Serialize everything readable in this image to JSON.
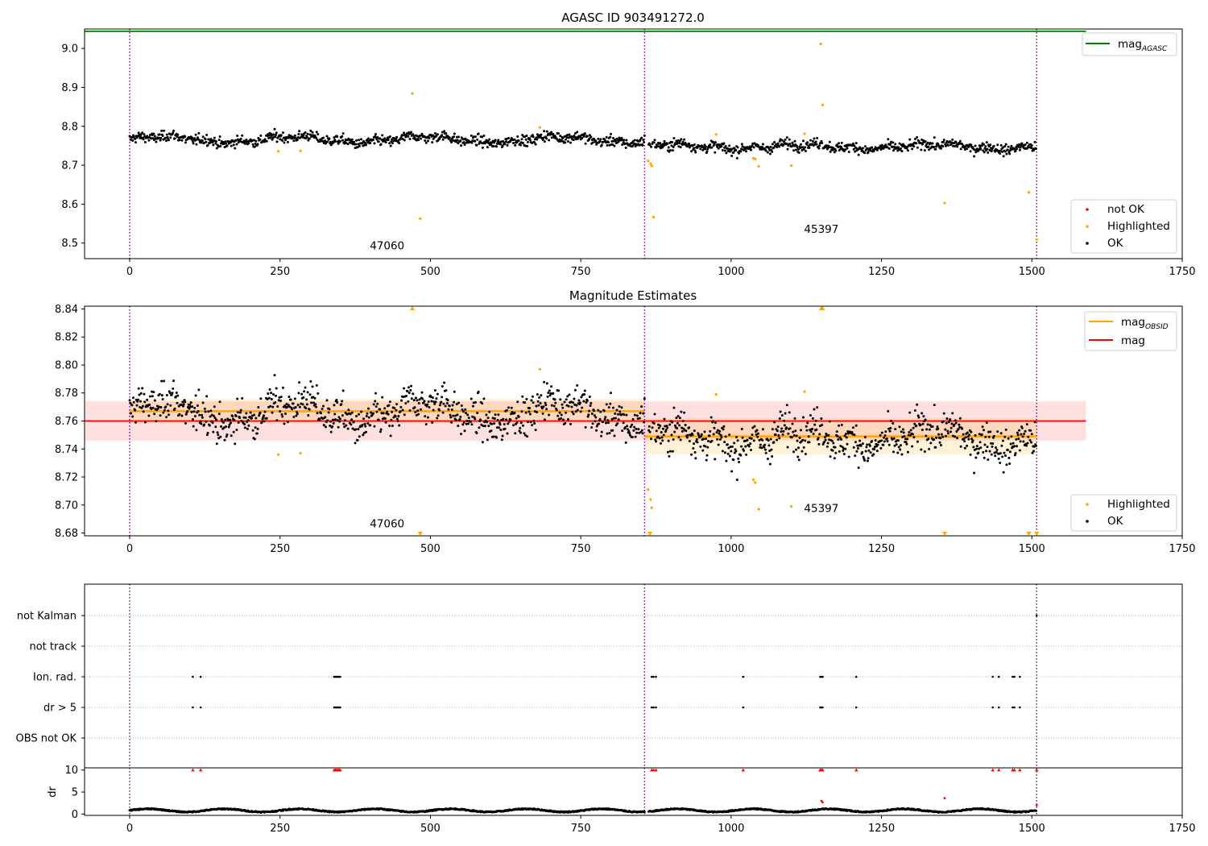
{
  "chart_data": [
    {
      "type": "scatter",
      "title": "AGASC ID 903491272.0",
      "xlim": [
        -75,
        1750
      ],
      "ylim": [
        8.46,
        9.05
      ],
      "xticks": [
        0,
        250,
        500,
        750,
        1000,
        1250,
        1500,
        1750
      ],
      "yticks": [
        8.5,
        8.6,
        8.7,
        8.8,
        8.9,
        9.0
      ],
      "legend_upper": [
        {
          "label": "mag",
          "sub": "AGASC",
          "color": "#008000"
        }
      ],
      "legend_lower": [
        {
          "label": "not OK",
          "color": "#ff0000"
        },
        {
          "label": "Highlighted",
          "color": "#ffa500"
        },
        {
          "label": "OK",
          "color": "#000000"
        }
      ],
      "mag_agasc": 9.044,
      "agasc_line_x": [
        -75,
        1590
      ],
      "obs_boundaries": [
        0,
        856,
        1508
      ],
      "obsids": [
        {
          "label": "47060",
          "x": 428,
          "y": 8.484
        },
        {
          "label": "45397",
          "x": 1150,
          "y": 8.526
        }
      ],
      "segments": [
        {
          "x0": 0,
          "x1": 856,
          "base": 8.766,
          "wobble": 0.008,
          "noise": 0.012
        },
        {
          "x0": 863,
          "x1": 1508,
          "base": 8.748,
          "wobble": 0.006,
          "noise": 0.012
        }
      ],
      "highlighted_points": [
        [
          247,
          8.736
        ],
        [
          284,
          8.737
        ],
        [
          470,
          8.884
        ],
        [
          483,
          8.563
        ],
        [
          682,
          8.797
        ],
        [
          862,
          8.711
        ],
        [
          866,
          8.704
        ],
        [
          868,
          8.698
        ],
        [
          871,
          8.567
        ],
        [
          975,
          8.779
        ],
        [
          1037,
          8.718
        ],
        [
          1040,
          8.716
        ],
        [
          1046,
          8.697
        ],
        [
          1100,
          8.699
        ],
        [
          1122,
          8.781
        ],
        [
          1149,
          9.012
        ],
        [
          1152,
          8.855
        ],
        [
          1355,
          8.603
        ],
        [
          1495,
          8.63
        ],
        [
          1508,
          8.509
        ]
      ]
    },
    {
      "type": "scatter",
      "title": "Magnitude Estimates",
      "xlim": [
        -75,
        1750
      ],
      "ylim": [
        8.678,
        8.842
      ],
      "xticks": [
        0,
        250,
        500,
        750,
        1000,
        1250,
        1500,
        1750
      ],
      "yticks": [
        8.68,
        8.7,
        8.72,
        8.74,
        8.76,
        8.78,
        8.8,
        8.82,
        8.84
      ],
      "legend_upper": [
        {
          "label": "mag",
          "sub": "OBSID",
          "color": "#ffa500"
        },
        {
          "label": "mag",
          "sub": "",
          "color": "#ff0000"
        }
      ],
      "legend_lower": [
        {
          "label": "Highlighted",
          "color": "#ffa500"
        },
        {
          "label": "OK",
          "color": "#000000"
        }
      ],
      "mag": 8.76,
      "mag_band": [
        8.746,
        8.774
      ],
      "mag_band_x": [
        -75,
        1590
      ],
      "mag_obsid": [
        {
          "x0": 0,
          "x1": 856,
          "mag": 8.767,
          "band": [
            8.758,
            8.776
          ]
        },
        {
          "x0": 856,
          "x1": 1508,
          "mag": 8.749,
          "band": [
            8.736,
            8.762
          ]
        }
      ],
      "obsids": [
        {
          "label": "47060",
          "x": 428,
          "y": 8.684
        },
        {
          "label": "45397",
          "x": 1150,
          "y": 8.695
        }
      ],
      "clipped_up": [
        470,
        1150,
        1152
      ],
      "clipped_down": [
        483,
        865,
        1355,
        1495,
        1508
      ],
      "obs_boundaries": [
        0,
        856,
        1508
      ]
    },
    {
      "type": "scatter",
      "title": "",
      "xlim": [
        -75,
        1750
      ],
      "xticks": [
        0,
        250,
        500,
        750,
        1000,
        1250,
        1500,
        1750
      ],
      "flag_rows": [
        "not Kalman",
        "not track",
        "Ion. rad.",
        "dr > 5",
        "OBS not OK"
      ],
      "flags": {
        "not Kalman": [
          1508
        ],
        "not track": [],
        "Ion. rad.": [
          105,
          118,
          340,
          342,
          344,
          346,
          348,
          350,
          868,
          871,
          875,
          1020,
          1148,
          1150,
          1152,
          1208,
          1435,
          1445,
          1468,
          1471,
          1480
        ],
        "dr > 5": [
          105,
          118,
          340,
          342,
          344,
          346,
          348,
          350,
          868,
          871,
          875,
          1020,
          1148,
          1150,
          1152,
          1208,
          1435,
          1445,
          1468,
          1471,
          1480
        ],
        "OBS not OK": []
      },
      "obs_boundaries": [
        0,
        856,
        1508
      ]
    },
    {
      "type": "scatter",
      "title": "",
      "xlim": [
        -75,
        1750
      ],
      "ylim": [
        -0.3,
        10.5
      ],
      "ylabel": "dr",
      "yticks": [
        0,
        5,
        10
      ],
      "xticks": [
        0,
        250,
        500,
        750,
        1000,
        1250,
        1500,
        1750
      ],
      "clipped_points": [
        105,
        118,
        340,
        342,
        344,
        346,
        348,
        350,
        868,
        871,
        875,
        1020,
        1148,
        1150,
        1152,
        1208,
        1435,
        1445,
        1468,
        1471,
        1480,
        1508
      ],
      "notok_points": [
        [
          1150,
          3.0
        ],
        [
          1152,
          2.7
        ],
        [
          1355,
          3.6
        ],
        [
          1508,
          2.0
        ]
      ],
      "typical_dr": 1.0,
      "obs_boundaries": [
        0,
        856,
        1508
      ]
    }
  ]
}
